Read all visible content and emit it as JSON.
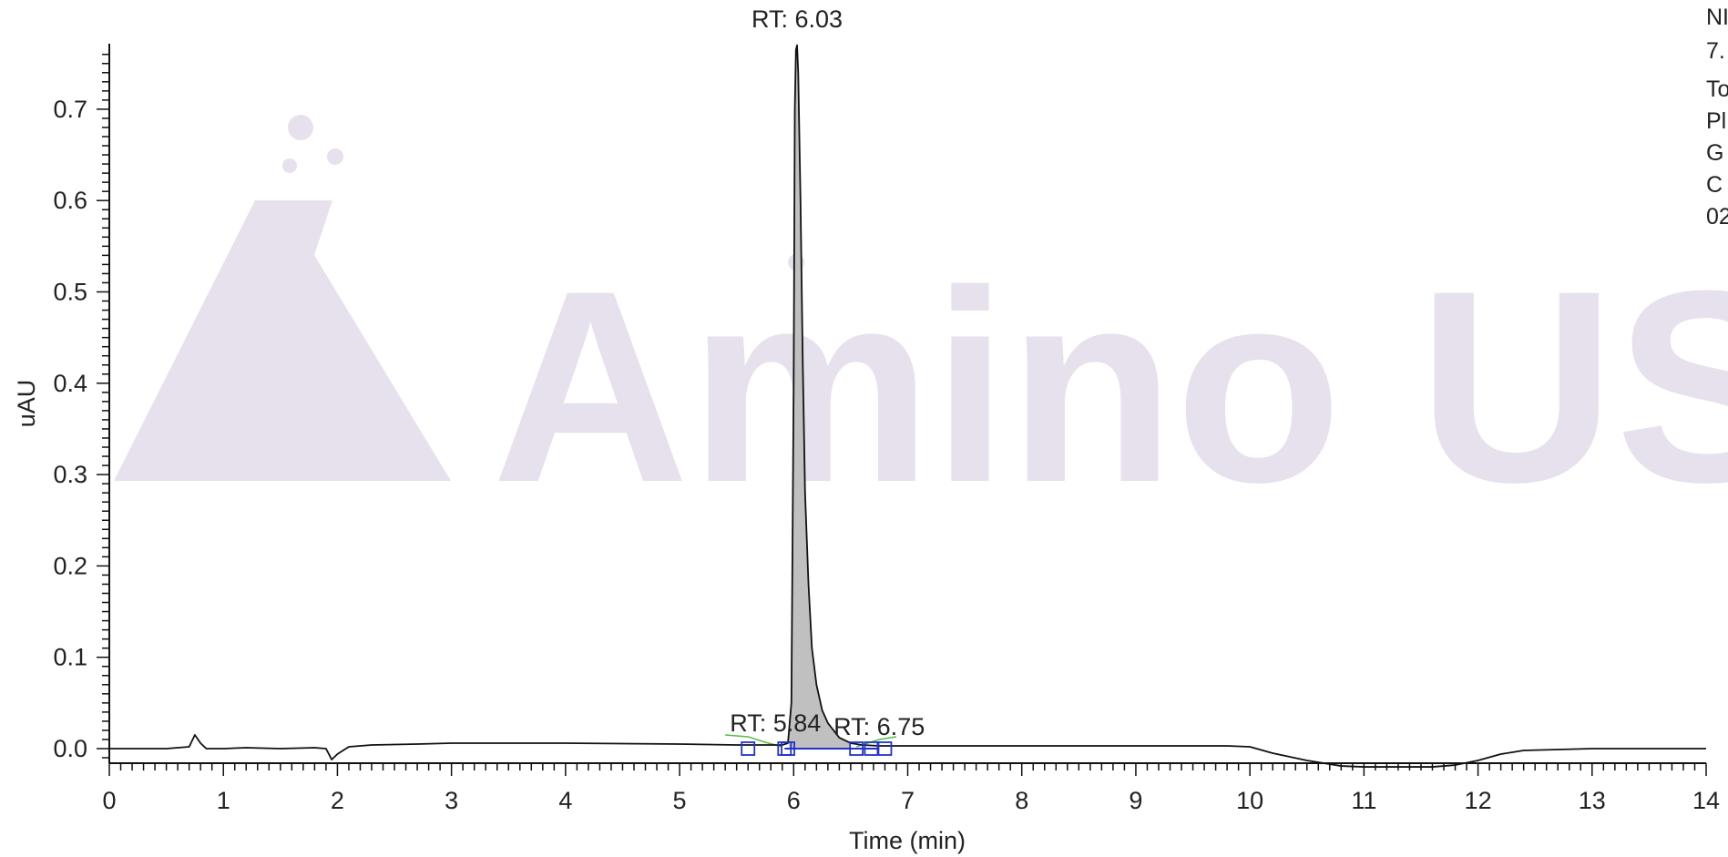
{
  "watermark": {
    "text": "Amino USA",
    "color": "#e6e1ec"
  },
  "info_panel": {
    "lines": [
      "NI",
      "7.",
      "To",
      "Pl",
      "G",
      "C",
      "02"
    ]
  },
  "chart_data": {
    "type": "line",
    "title": "",
    "xlabel": "Time (min)",
    "ylabel": "uAU",
    "xlim": [
      0,
      14
    ],
    "ylim": [
      -0.02,
      0.77
    ],
    "x_ticks": [
      0,
      1,
      2,
      3,
      4,
      5,
      6,
      7,
      8,
      9,
      10,
      11,
      12,
      13,
      14
    ],
    "x_tick_labels": [
      "0",
      "1",
      "2",
      "3",
      "4",
      "5",
      "6",
      "7",
      "8",
      "9",
      "10",
      "11",
      "12",
      "13",
      "14"
    ],
    "y_ticks": [
      0.0,
      0.1,
      0.2,
      0.3,
      0.4,
      0.5,
      0.6,
      0.7
    ],
    "y_tick_labels": [
      "0.0",
      "0.1",
      "0.2",
      "0.3",
      "0.4",
      "0.5",
      "0.6",
      "0.7"
    ],
    "grid": false,
    "legend": "none",
    "series": [
      {
        "line_color": "#111111",
        "x": [
          0,
          0.5,
          0.7,
          0.75,
          0.8,
          0.85,
          1.0,
          1.2,
          1.5,
          1.8,
          1.9,
          1.95,
          2.0,
          2.1,
          2.3,
          2.7,
          3.0,
          4.0,
          5.0,
          5.5,
          5.84,
          5.9,
          5.95,
          5.98,
          6.0,
          6.01,
          6.02,
          6.03,
          6.04,
          6.06,
          6.08,
          6.1,
          6.13,
          6.16,
          6.2,
          6.25,
          6.3,
          6.4,
          6.5,
          6.6,
          6.75,
          7.0,
          8.0,
          9.0,
          9.8,
          10.0,
          10.2,
          10.5,
          10.8,
          11.0,
          11.3,
          11.6,
          11.8,
          12.0,
          12.2,
          12.4,
          13.0,
          14.0
        ],
        "y": [
          0.0,
          0.0,
          0.002,
          0.015,
          0.006,
          0.0,
          0.0,
          0.001,
          0.0,
          0.001,
          0.0,
          -0.012,
          -0.006,
          0.002,
          0.004,
          0.005,
          0.006,
          0.006,
          0.005,
          0.004,
          0.004,
          0.004,
          0.006,
          0.05,
          0.4,
          0.7,
          0.765,
          0.77,
          0.74,
          0.6,
          0.42,
          0.28,
          0.18,
          0.11,
          0.07,
          0.042,
          0.028,
          0.012,
          0.006,
          0.004,
          0.003,
          0.003,
          0.003,
          0.003,
          0.003,
          0.002,
          -0.005,
          -0.013,
          -0.019,
          -0.02,
          -0.02,
          -0.02,
          -0.018,
          -0.013,
          -0.006,
          -0.002,
          0.0,
          0.0
        ]
      }
    ],
    "peak_fill": {
      "x_start": 5.96,
      "x_end": 6.5,
      "color": "#c0c0c0"
    },
    "baseline": {
      "x_start": 5.92,
      "x_end": 6.75,
      "y": 0.0,
      "color": "#2233cc"
    },
    "green_baseline_segments": [
      {
        "x": [
          5.4,
          5.6,
          5.75,
          5.9
        ],
        "y": [
          0.015,
          0.013,
          0.007,
          0.002
        ],
        "color": "#55bb44"
      },
      {
        "x": [
          6.55,
          6.65,
          6.75,
          6.9
        ],
        "y": [
          0.002,
          0.006,
          0.01,
          0.013
        ],
        "color": "#55bb44"
      }
    ],
    "integration_markers": [
      5.6,
      5.92,
      5.95,
      6.55,
      6.68,
      6.8
    ],
    "annotations": [
      {
        "text": "RT: 6.03",
        "x": 6.03,
        "y": 0.77
      },
      {
        "text": "RT: 5.84",
        "x": 5.84,
        "y": 0.015
      },
      {
        "text": "RT: 6.75",
        "x": 6.75,
        "y": 0.015
      }
    ]
  }
}
